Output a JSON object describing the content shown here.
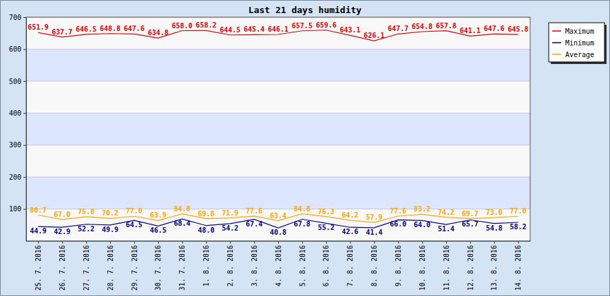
{
  "chart_data": {
    "type": "line",
    "title": "Last 21 days humidity",
    "categories": [
      "25. 7. 2016",
      "26. 7. 2016",
      "27. 7. 2016",
      "28. 7. 2016",
      "29. 7. 2016",
      "30. 7. 2016",
      "31. 7. 2016",
      "1. 8. 2016",
      "2. 8. 2016",
      "3. 8. 2016",
      "4. 8. 2016",
      "5. 8. 2016",
      "6. 8. 2016",
      "7. 8. 2016",
      "8. 8. 2016",
      "9. 8. 2016",
      "10. 8. 2016",
      "11. 8. 2016",
      "12. 8. 2016",
      "13. 8. 2016",
      "14. 8. 2016"
    ],
    "series": [
      {
        "name": "Maximum",
        "color": "#e00000",
        "values": [
          651.9,
          637.7,
          646.5,
          648.8,
          647.6,
          634.8,
          658.0,
          658.2,
          644.5,
          645.4,
          646.1,
          657.5,
          659.6,
          643.1,
          626.1,
          647.7,
          654.8,
          657.8,
          641.1,
          647.6,
          645.8
        ],
        "value_labels": [
          "651.9",
          "637.7",
          "646.5",
          "648.8",
          "647.6",
          "634.8",
          "658.0",
          "658.2",
          "644.5",
          "645.4",
          "646.1",
          "657.5",
          "659.6",
          "643.1",
          "626.1",
          "647.7",
          "654.8",
          "657.8",
          "641.1",
          "647.6",
          "645.8"
        ]
      },
      {
        "name": "Minimum",
        "color": "#000080",
        "values": [
          44.9,
          42.9,
          52.2,
          49.9,
          64.5,
          46.5,
          68.4,
          48.0,
          54.2,
          67.4,
          40.8,
          67.8,
          55.2,
          42.6,
          41.4,
          66.0,
          64.0,
          51.4,
          65.7,
          54.8,
          58.2
        ],
        "value_labels": [
          "44.9",
          "42.9",
          "52.2",
          "49.9",
          "64.5",
          "46.5",
          "68.4",
          "48.0",
          "54.2",
          "67.4",
          "40.8",
          "67.8",
          "55.2",
          "42.6",
          "41.4",
          "66.0",
          "64.0",
          "51.4",
          "65.7",
          "54.8",
          "58.2"
        ]
      },
      {
        "name": "Average",
        "color": "#ffa500",
        "values": [
          80.7,
          67.0,
          75.8,
          70.2,
          77.0,
          63.9,
          84.8,
          69.8,
          71.9,
          77.6,
          63.4,
          84.8,
          76.3,
          64.2,
          57.9,
          77.6,
          83.2,
          74.2,
          69.7,
          73.0,
          77.0
        ],
        "value_labels": [
          "80.7",
          "67.0",
          "75.8",
          "70.2",
          "77.0",
          "63.9",
          "84.8",
          "69.8",
          "71.9",
          "77.6",
          "63.4",
          "84.8",
          "76.3",
          "64.2",
          "57.9",
          "77.6",
          "83.2",
          "74.2",
          "69.7",
          "73.0",
          "77.0"
        ]
      }
    ],
    "ylim": [
      0,
      700
    ],
    "yticks": [
      100,
      200,
      300,
      400,
      500,
      600,
      700
    ],
    "grid": true,
    "legend": "right",
    "data_labels": true
  }
}
